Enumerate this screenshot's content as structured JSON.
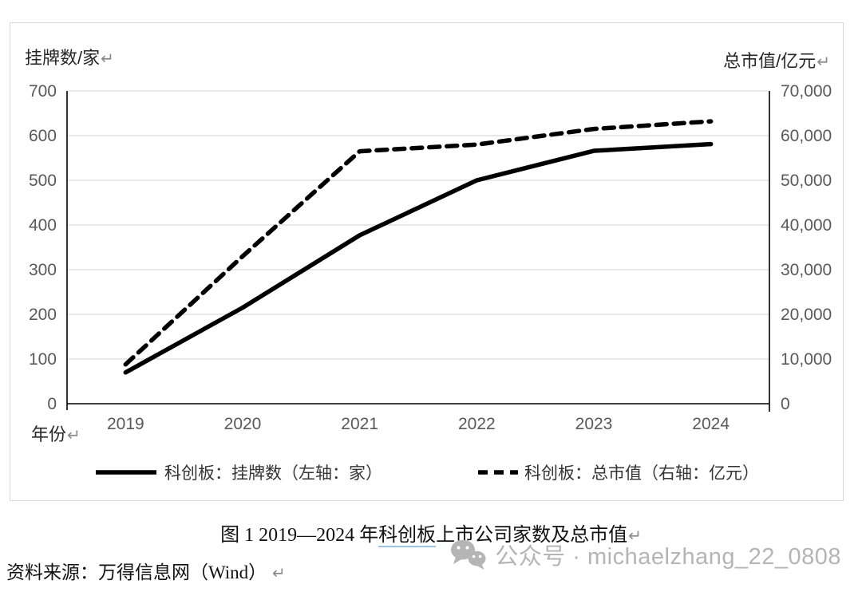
{
  "chart": {
    "left_axis_title": "挂牌数/家",
    "right_axis_title": "总市值/亿元",
    "x_axis_title": "年份",
    "return_mark": "↵",
    "legend": [
      {
        "label": "科创板：挂牌数（左轴：家）",
        "style": "solid"
      },
      {
        "label": "科创板：总市值（右轴：亿元）",
        "style": "dashed"
      }
    ]
  },
  "chart_data": {
    "type": "line",
    "categories": [
      "2019",
      "2020",
      "2021",
      "2022",
      "2023",
      "2024"
    ],
    "series": [
      {
        "name": "科创板：挂牌数（左轴：家）",
        "axis": "left",
        "line": "solid",
        "values": [
          70,
          215,
          377,
          500,
          566,
          581
        ]
      },
      {
        "name": "科创板：总市值（右轴：亿元）",
        "axis": "right",
        "line": "dashed",
        "values": [
          8800,
          33000,
          56500,
          58000,
          61500,
          63200
        ]
      }
    ],
    "left_axis": {
      "min": 0,
      "max": 700,
      "step": 100,
      "tick_labels": [
        "0",
        "100",
        "200",
        "300",
        "400",
        "500",
        "600",
        "700"
      ]
    },
    "right_axis": {
      "min": 0,
      "max": 70000,
      "step": 10000,
      "tick_labels": [
        "0",
        "10,000",
        "20,000",
        "30,000",
        "40,000",
        "50,000",
        "60,000",
        "70,000"
      ]
    },
    "grid": true,
    "legend_position": "bottom",
    "colors": {
      "line": "#000000",
      "grid": "#d9d9d9",
      "axis": "#000000",
      "tick_text": "#595959"
    }
  },
  "caption": {
    "prefix": "图 1 2019—2024 年",
    "underlined": "科创板",
    "suffix": "上市公司家数及总市值"
  },
  "source": "资料来源：万得信息网（Wind）",
  "watermark": {
    "text": "公众号 · michaelzhang_22_0808"
  }
}
